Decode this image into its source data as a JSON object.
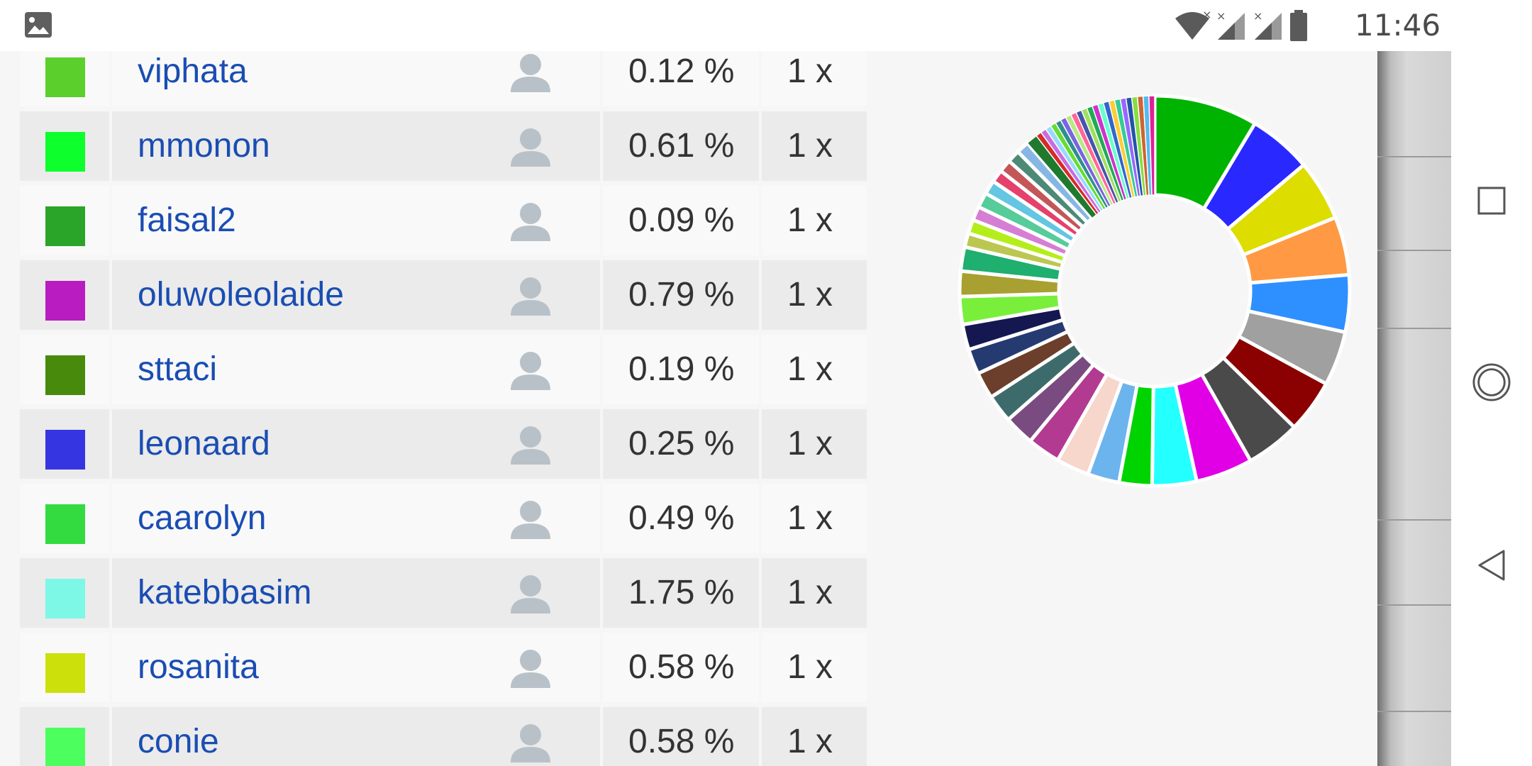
{
  "status_bar": {
    "time": "11:46",
    "icons": [
      "gallery-icon",
      "wifi-icon",
      "signal-icon",
      "signal-icon",
      "battery-icon"
    ]
  },
  "table": {
    "rows": [
      {
        "color": "#5bcf2b",
        "name": "viphata",
        "percent": "0.12 %",
        "count": "1 x"
      },
      {
        "color": "#0dff2c",
        "name": "mmonon",
        "percent": "0.61 %",
        "count": "1 x"
      },
      {
        "color": "#2aa52a",
        "name": "faisal2",
        "percent": "0.09 %",
        "count": "1 x"
      },
      {
        "color": "#b91cc0",
        "name": "oluwoleolaide",
        "percent": "0.79 %",
        "count": "1 x"
      },
      {
        "color": "#488b0c",
        "name": "sttaci",
        "percent": "0.19 %",
        "count": "1 x"
      },
      {
        "color": "#3535e1",
        "name": "leonaard",
        "percent": "0.25 %",
        "count": "1 x"
      },
      {
        "color": "#33db41",
        "name": "caarolyn",
        "percent": "0.49 %",
        "count": "1 x"
      },
      {
        "color": "#7df7e6",
        "name": "katebbasim",
        "percent": "1.75 %",
        "count": "1 x"
      },
      {
        "color": "#cce00c",
        "name": "rosanita",
        "percent": "0.58 %",
        "count": "1 x"
      },
      {
        "color": "#4cff5e",
        "name": "conie",
        "percent": "0.58 %",
        "count": "1 x"
      }
    ]
  },
  "chart_data": {
    "type": "pie",
    "colors": [
      "#00b300",
      "#2929ff",
      "#dddd00",
      "#ff9944",
      "#2e90ff",
      "#a0a0a0",
      "#8b0000",
      "#4a4a4a",
      "#e100e6",
      "#24ffff",
      "#00d400",
      "#6cb4ee",
      "#f7d6cb",
      "#b23a91",
      "#7a4b80",
      "#3d6b6b",
      "#6b3f2b",
      "#263a72",
      "#151750",
      "#79ef3c",
      "#a8a031",
      "#1faf6e",
      "#bbc751",
      "#b4ee1a",
      "#d67ed3",
      "#55cc99",
      "#63c6e2",
      "#e4416c",
      "#c35656",
      "#4c8a77",
      "#86b7e4",
      "#1f7a2e",
      "#d62b2b",
      "#c86de0",
      "#98d9ff",
      "#66dd33",
      "#2f8f8f",
      "#7a64e0",
      "#b8e986",
      "#ff6699",
      "#4455aa",
      "#a0e060",
      "#22aa55",
      "#cc33cc",
      "#66ffcc",
      "#3366cc",
      "#ffcc33",
      "#33cc99",
      "#9966ff",
      "#2255aa",
      "#88dd44",
      "#cc6633",
      "#55bbee",
      "#dd2299"
    ],
    "values": [
      8.2,
      5.0,
      4.8,
      4.6,
      4.5,
      4.3,
      4.2,
      4.3,
      4.5,
      3.5,
      2.6,
      2.5,
      2.6,
      2.6,
      2.4,
      2.2,
      2.1,
      2.0,
      2.0,
      2.2,
      2.0,
      1.9,
      1.1,
      1.1,
      1.1,
      1.2,
      1.1,
      1.0,
      1.0,
      1.0,
      1.0,
      0.9,
      0.45,
      0.45,
      0.45,
      0.45,
      0.45,
      0.45,
      0.45,
      0.45,
      0.45,
      0.45,
      0.45,
      0.45,
      0.45,
      0.45,
      0.45,
      0.45,
      0.45,
      0.45,
      0.45,
      0.45,
      0.45,
      0.45
    ]
  }
}
